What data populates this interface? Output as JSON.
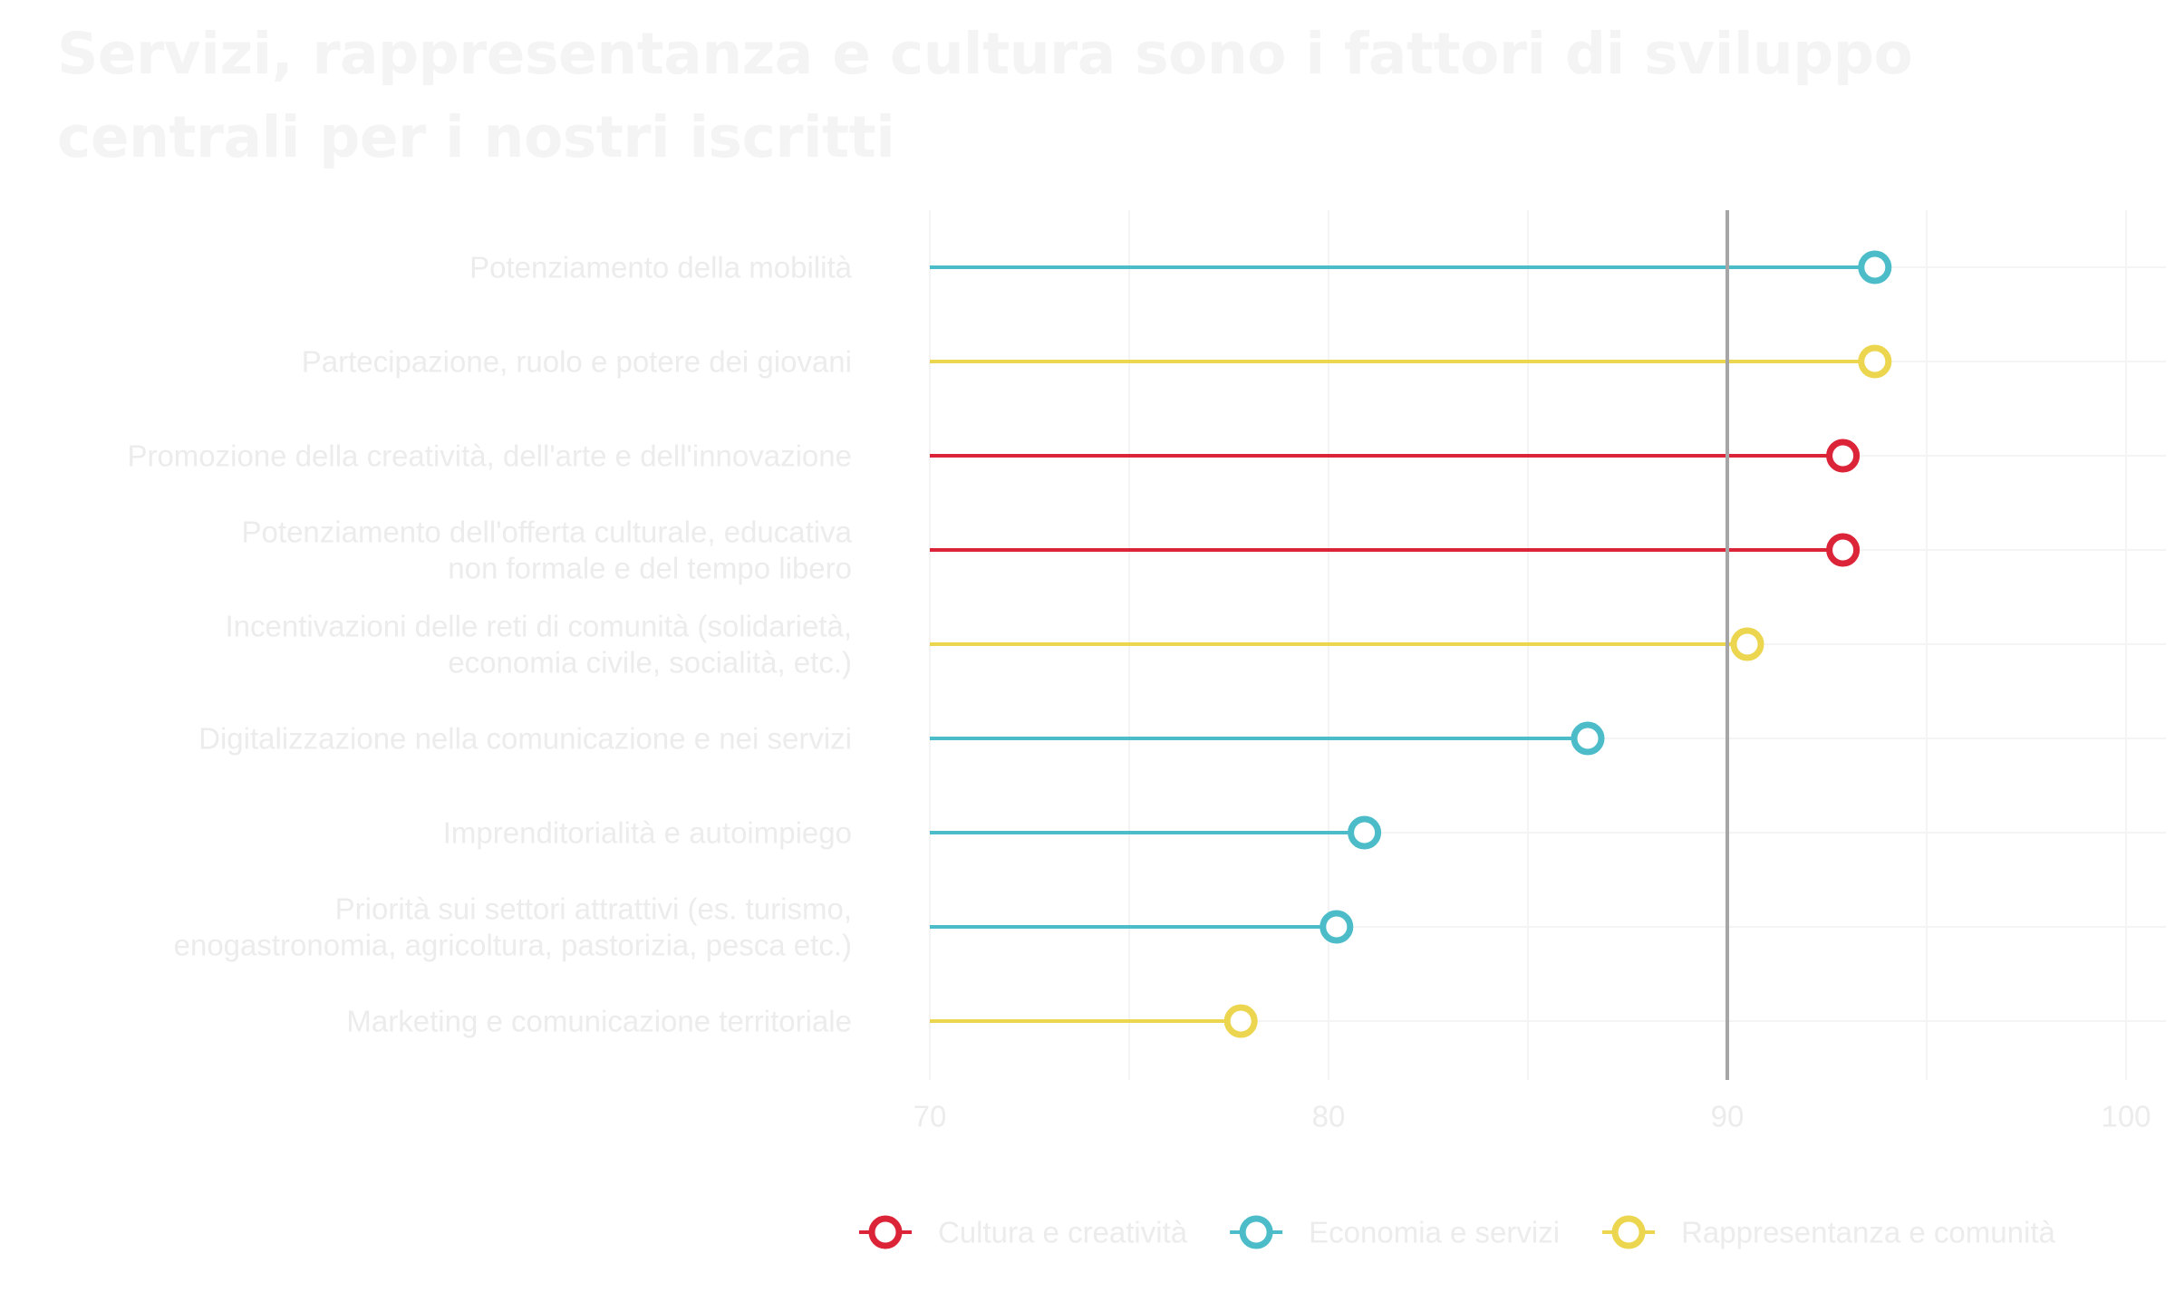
{
  "colors": {
    "cultura": "#dc2438",
    "economia": "#4bbcc8",
    "rappresentanza": "#ecd64f",
    "reference_line": "#a6a6a6",
    "grid": "#f4f4f4",
    "text": "#ececec"
  },
  "chart_data": {
    "type": "lollipop",
    "title": "Servizi, rappresentanza e cultura sono i fattori di sviluppo  centrali per i nostri iscritti",
    "xlabel": "",
    "ylabel": "",
    "xlim": [
      70,
      101
    ],
    "x_ticks": [
      "70",
      "80",
      "90",
      "100"
    ],
    "baseline": 70,
    "reference_line": 90,
    "grid": true,
    "legend_position": "bottom",
    "legend": [
      {
        "key": "cultura",
        "label": "Cultura e creatività"
      },
      {
        "key": "economia",
        "label": "Economia e servizi"
      },
      {
        "key": "rappresentanza",
        "label": "Rappresentanza e comunità"
      }
    ],
    "items": [
      {
        "label_lines": [
          "Potenziamento della mobilità"
        ],
        "value": 93.7,
        "group": "economia"
      },
      {
        "label_lines": [
          "Partecipazione, ruolo e potere dei giovani"
        ],
        "value": 93.7,
        "group": "rappresentanza"
      },
      {
        "label_lines": [
          "Promozione della creatività, dell'arte e dell'innovazione"
        ],
        "value": 92.9,
        "group": "cultura"
      },
      {
        "label_lines": [
          "Potenziamento dell'offerta culturale, educativa",
          "non formale e del tempo libero"
        ],
        "value": 92.9,
        "group": "cultura"
      },
      {
        "label_lines": [
          "Incentivazioni delle reti di comunità (solidarietà,",
          "economia civile, socialità, etc.)"
        ],
        "value": 90.5,
        "group": "rappresentanza"
      },
      {
        "label_lines": [
          "Digitalizzazione nella comunicazione e nei servizi"
        ],
        "value": 86.5,
        "group": "economia"
      },
      {
        "label_lines": [
          "Imprenditorialità e autoimpiego"
        ],
        "value": 80.9,
        "group": "economia"
      },
      {
        "label_lines": [
          "Priorità sui settori attrattivi (es. turismo,",
          "enogastronomia, agricoltura, pastorizia, pesca etc.)"
        ],
        "value": 80.2,
        "group": "economia"
      },
      {
        "label_lines": [
          "Marketing e comunicazione territoriale"
        ],
        "value": 77.8,
        "group": "rappresentanza"
      }
    ]
  }
}
